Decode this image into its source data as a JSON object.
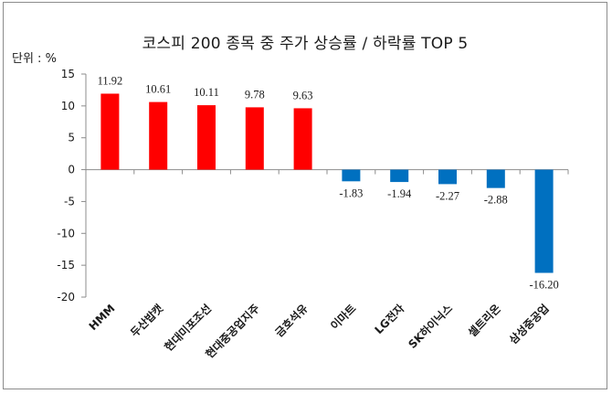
{
  "chart_data": {
    "type": "bar",
    "title": "코스피 200 종목 중  주가 상승률 / 하락률 TOP 5",
    "unit_label": "단위 : %",
    "categories": [
      "HMM",
      "두산밥캣",
      "현대미포조선",
      "현대중공업지주",
      "금호석유",
      "이마트",
      "LG전자",
      "SK하이닉스",
      "셀트리온",
      "삼성중공업"
    ],
    "values": [
      11.92,
      10.61,
      10.11,
      9.78,
      9.63,
      -1.83,
      -1.94,
      -2.27,
      -2.88,
      -16.2
    ],
    "value_labels": [
      "11.92",
      "10.61",
      "10.11",
      "9.78",
      "9.63",
      "-1.83",
      "-1.94",
      "-2.27",
      "-2.88",
      "-16.20"
    ],
    "ylim": [
      -20,
      15
    ],
    "yticks": [
      15,
      10,
      5,
      0,
      -5,
      -10,
      -15,
      -20
    ],
    "colors": {
      "positive": "#ff0000",
      "negative": "#0070c0",
      "axis": "#8c8c8c"
    },
    "grid": false,
    "legend": "none"
  }
}
